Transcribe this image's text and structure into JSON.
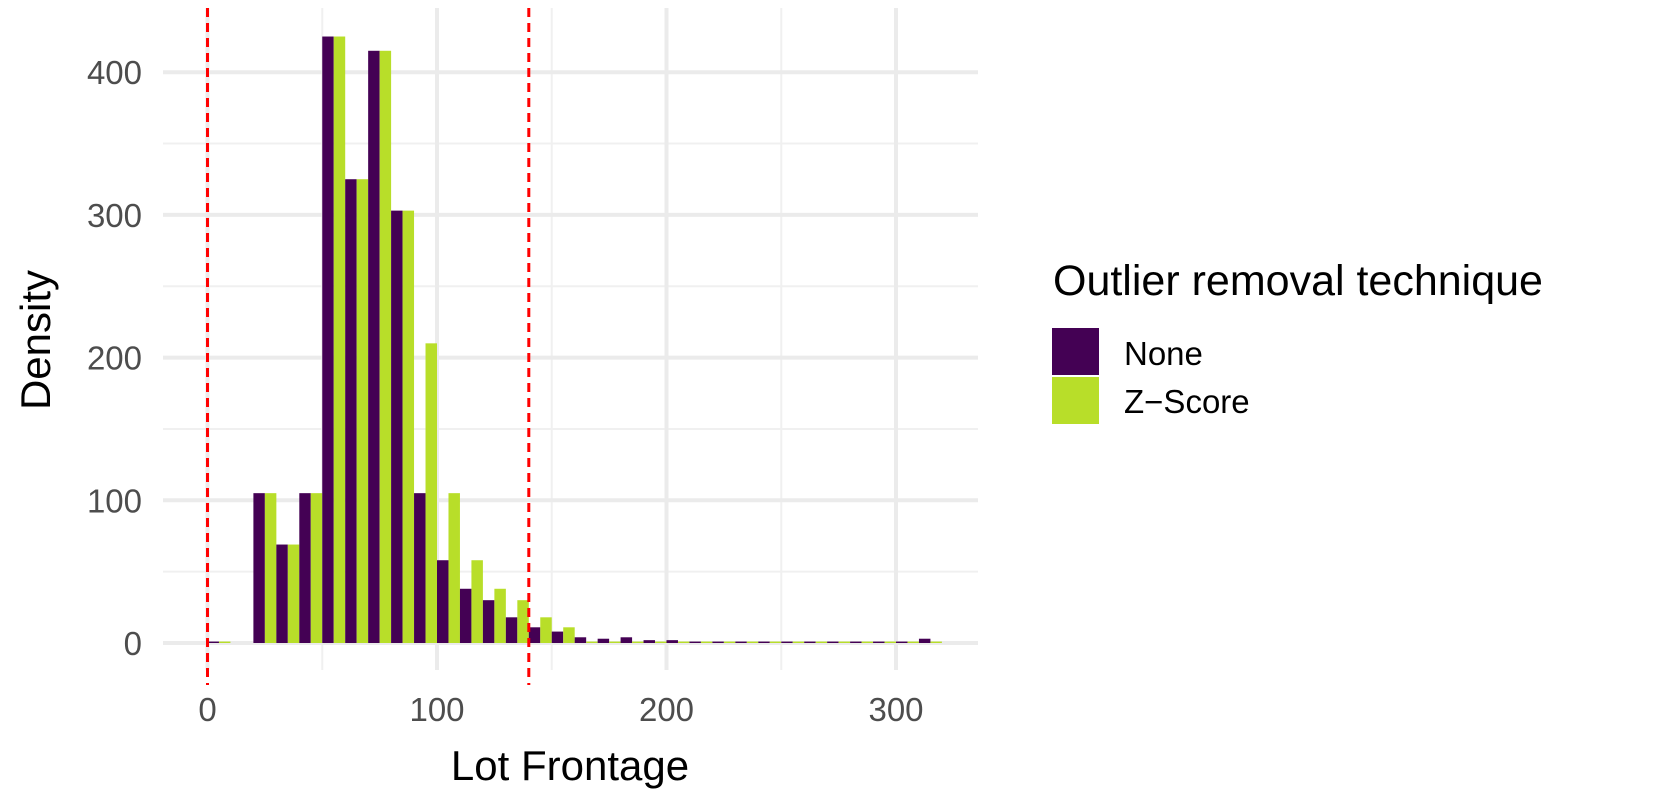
{
  "chart_data": {
    "type": "bar",
    "xlabel": "Lot Frontage",
    "ylabel": "Density",
    "xlim": [
      -10,
      335
    ],
    "ylim": [
      -20,
      445
    ],
    "x_ticks": [
      0,
      100,
      200,
      300
    ],
    "x_tick_labels": [
      "0",
      "100",
      "200",
      "300"
    ],
    "y_ticks": [
      0,
      100,
      200,
      300,
      400
    ],
    "y_tick_labels": [
      "0",
      "100",
      "200",
      "300",
      "400"
    ],
    "grid": true,
    "bin_width": 10,
    "bin_centers": [
      5,
      25,
      35,
      45,
      55,
      65,
      75,
      85,
      95,
      105,
      115,
      125,
      135,
      145,
      155,
      165,
      175,
      185,
      195,
      205,
      215,
      225,
      235,
      245,
      255,
      265,
      275,
      285,
      295,
      305,
      315
    ],
    "series": [
      {
        "name": "None",
        "color": "#440154",
        "values": [
          1,
          105,
          69,
          105,
          425,
          325,
          415,
          303,
          105,
          58,
          38,
          30,
          18,
          11,
          8,
          4,
          3,
          4,
          2,
          2,
          1,
          1,
          1,
          1,
          1,
          1,
          1,
          1,
          1,
          1,
          3
        ]
      },
      {
        "name": "Z−Score",
        "color": "#B8DE29",
        "values": [
          1,
          105,
          69,
          105,
          425,
          325,
          415,
          303,
          210,
          105,
          58,
          38,
          30,
          18,
          11,
          1,
          1,
          1,
          1,
          1,
          1,
          1,
          1,
          1,
          1,
          1,
          1,
          1,
          1,
          1,
          1
        ]
      }
    ],
    "reference_lines": [
      0,
      140
    ],
    "reference_line_color": "#ff0000",
    "legend": {
      "title": "Outlier removal technique",
      "position": "right",
      "items": [
        "None",
        "Z−Score"
      ]
    }
  }
}
